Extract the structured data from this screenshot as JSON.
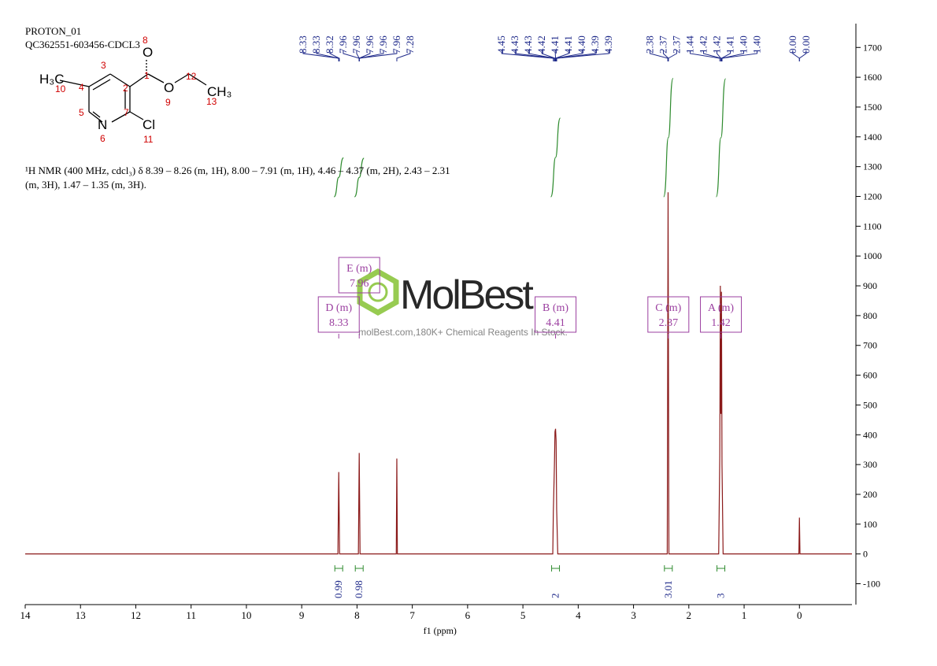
{
  "header": {
    "lines": [
      "PROTON_01",
      "QC362551-603456-CDCL3"
    ]
  },
  "structure": {
    "atoms": [
      "H₃C",
      "O",
      "O",
      "CH₃",
      "N",
      "Cl"
    ],
    "numbers": [
      "10",
      "4",
      "3",
      "2",
      "1",
      "8",
      "9",
      "12",
      "13",
      "5",
      "6",
      "7",
      "11"
    ]
  },
  "description": "¹H NMR (400 MHz, cdcl₃) δ 8.39 – 8.26 (m, 1H), 8.00 – 7.91 (m, 1H), 4.46 – 4.37 (m, 2H), 2.43 – 2.31 (m, 3H), 1.47 – 1.35 (m, 3H).",
  "watermark": {
    "brand": "MolBest",
    "tagline": "molBest.com,180K+ Chemical Reagents In Stock."
  },
  "chart_data": {
    "type": "line",
    "x_label": "f1 (ppm)",
    "x": [
      14,
      8.345,
      8.33,
      8.315,
      7.975,
      7.96,
      7.945,
      7.29,
      7.28,
      7.27,
      4.46,
      4.45,
      4.43,
      4.42,
      4.41,
      4.4,
      4.39,
      4.37,
      4.36,
      2.39,
      2.375,
      2.36,
      1.46,
      1.44,
      1.43,
      1.42,
      1.41,
      1.4,
      1.38,
      0.01,
      0.0,
      -0.01,
      -0.95
    ],
    "values": [
      0,
      0,
      275,
      0,
      0,
      339,
      0,
      0,
      320,
      0,
      0,
      140,
      300,
      410,
      420,
      380,
      150,
      0,
      0,
      0,
      1214,
      0,
      0,
      330,
      900,
      470,
      880,
      300,
      0,
      0,
      122,
      0,
      0
    ],
    "color": "#8b1a1a",
    "xlim": [
      14,
      -0.95
    ],
    "xticks": [
      14,
      13,
      12,
      11,
      10,
      9,
      8,
      7,
      6,
      5,
      4,
      3,
      2,
      1,
      0
    ],
    "ylim": [
      -170,
      1780
    ],
    "yticks": [
      -100,
      0,
      100,
      200,
      300,
      400,
      500,
      600,
      700,
      800,
      900,
      1000,
      1100,
      1200,
      1300,
      1400,
      1500,
      1600,
      1700
    ],
    "y_axis_side": "right",
    "peak_labels": [
      8.33,
      8.33,
      8.32,
      7.96,
      7.96,
      7.96,
      7.96,
      7.96,
      7.28,
      4.45,
      4.43,
      4.43,
      4.42,
      4.41,
      4.41,
      {
        "value": 4.4,
        "label": "4.40"
      },
      4.39,
      4.39,
      2.38,
      2.37,
      2.37,
      1.44,
      1.42,
      1.42,
      1.41,
      {
        "value": 1.4,
        "label": "1.40"
      },
      {
        "value": 1.4,
        "label": "1.40"
      },
      {
        "value": 0,
        "label": "0.00"
      },
      {
        "value": 0,
        "label": "0.00"
      }
    ],
    "peak_label_color": "#1f2a8a",
    "integrals": [
      {
        "x": 8.33,
        "value": 0.99
      },
      {
        "x": 7.96,
        "value": 0.98
      },
      {
        "x": 4.41,
        "value": 2.0
      },
      {
        "x": 2.37,
        "value": 3.01
      },
      {
        "x": 1.42,
        "value": 3.0
      }
    ],
    "integral_color": "#2e8b2e",
    "multiplets": [
      {
        "label": "D (m)",
        "shift": 8.33
      },
      {
        "label": "E (m)",
        "shift": 7.96
      },
      {
        "label": "B (m)",
        "shift": 4.41
      },
      {
        "label": "C (m)",
        "shift": 2.37
      },
      {
        "label": "A (m)",
        "shift": 1.42
      }
    ],
    "multiplet_color": "#9b3fa0"
  }
}
